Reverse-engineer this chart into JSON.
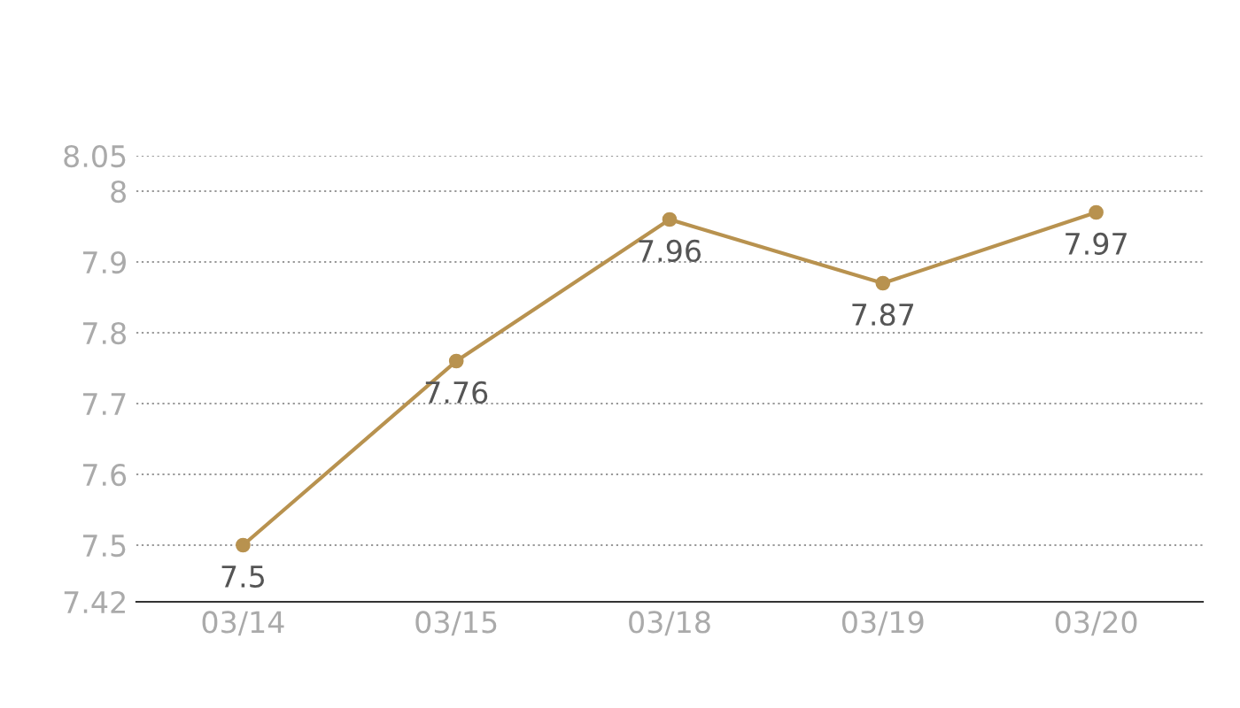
{
  "chart_data": {
    "type": "line",
    "categories": [
      "03/14",
      "03/15",
      "03/18",
      "03/19",
      "03/20"
    ],
    "series": [
      {
        "color": "#b8924f",
        "values": [
          7.5,
          7.76,
          7.96,
          7.87,
          7.97
        ]
      }
    ],
    "ylim": [
      7.42,
      8.05
    ],
    "yticks": [
      7.42,
      7.5,
      7.6,
      7.7,
      7.8,
      7.9,
      8,
      8.05
    ],
    "grid": "y",
    "marker": "circle",
    "line_style": "solid",
    "data_labels": true
  }
}
